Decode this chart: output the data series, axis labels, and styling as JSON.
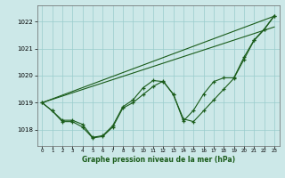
{
  "title": "Graphe pression niveau de la mer (hPa)",
  "bg_color": "#cce8e8",
  "grid_color": "#99cccc",
  "line_color": "#1a5c1a",
  "xlim": [
    -0.5,
    23.5
  ],
  "ylim": [
    1017.4,
    1022.6
  ],
  "yticks": [
    1018,
    1019,
    1020,
    1021,
    1022
  ],
  "xticks": [
    0,
    1,
    2,
    3,
    4,
    5,
    6,
    7,
    8,
    9,
    10,
    11,
    12,
    13,
    14,
    15,
    16,
    17,
    18,
    19,
    20,
    21,
    22,
    23
  ],
  "line1": {
    "x": [
      0,
      1,
      2,
      3,
      4,
      5,
      6,
      7,
      8,
      9,
      10,
      11,
      12,
      13,
      14,
      15,
      16,
      17,
      18,
      19,
      20,
      21,
      22,
      23
    ],
    "y": [
      1019.0,
      1018.7,
      1018.3,
      1018.3,
      1018.1,
      1017.7,
      1017.75,
      1018.1,
      1018.8,
      1019.0,
      1019.3,
      1019.6,
      1019.8,
      1019.3,
      1018.4,
      1018.3,
      1018.7,
      1019.1,
      1019.5,
      1019.9,
      1020.6,
      1021.3,
      1021.7,
      1022.2
    ]
  },
  "line2": {
    "x": [
      0,
      1,
      2,
      3,
      4,
      5,
      6,
      7,
      8,
      9,
      10,
      11,
      12,
      13,
      14,
      15,
      16,
      17,
      18,
      19,
      20,
      21,
      22,
      23
    ],
    "y": [
      1019.0,
      1018.7,
      1018.35,
      1018.35,
      1018.2,
      1017.72,
      1017.78,
      1018.15,
      1018.85,
      1019.1,
      1019.55,
      1019.82,
      1019.78,
      1019.32,
      1018.32,
      1018.72,
      1019.32,
      1019.78,
      1019.92,
      1019.92,
      1020.68,
      1021.32,
      1021.72,
      1022.22
    ]
  },
  "line3_straight": {
    "x": [
      0,
      23
    ],
    "y": [
      1019.0,
      1022.2
    ]
  },
  "line4_straight": {
    "x": [
      0,
      23
    ],
    "y": [
      1019.0,
      1021.8
    ]
  }
}
